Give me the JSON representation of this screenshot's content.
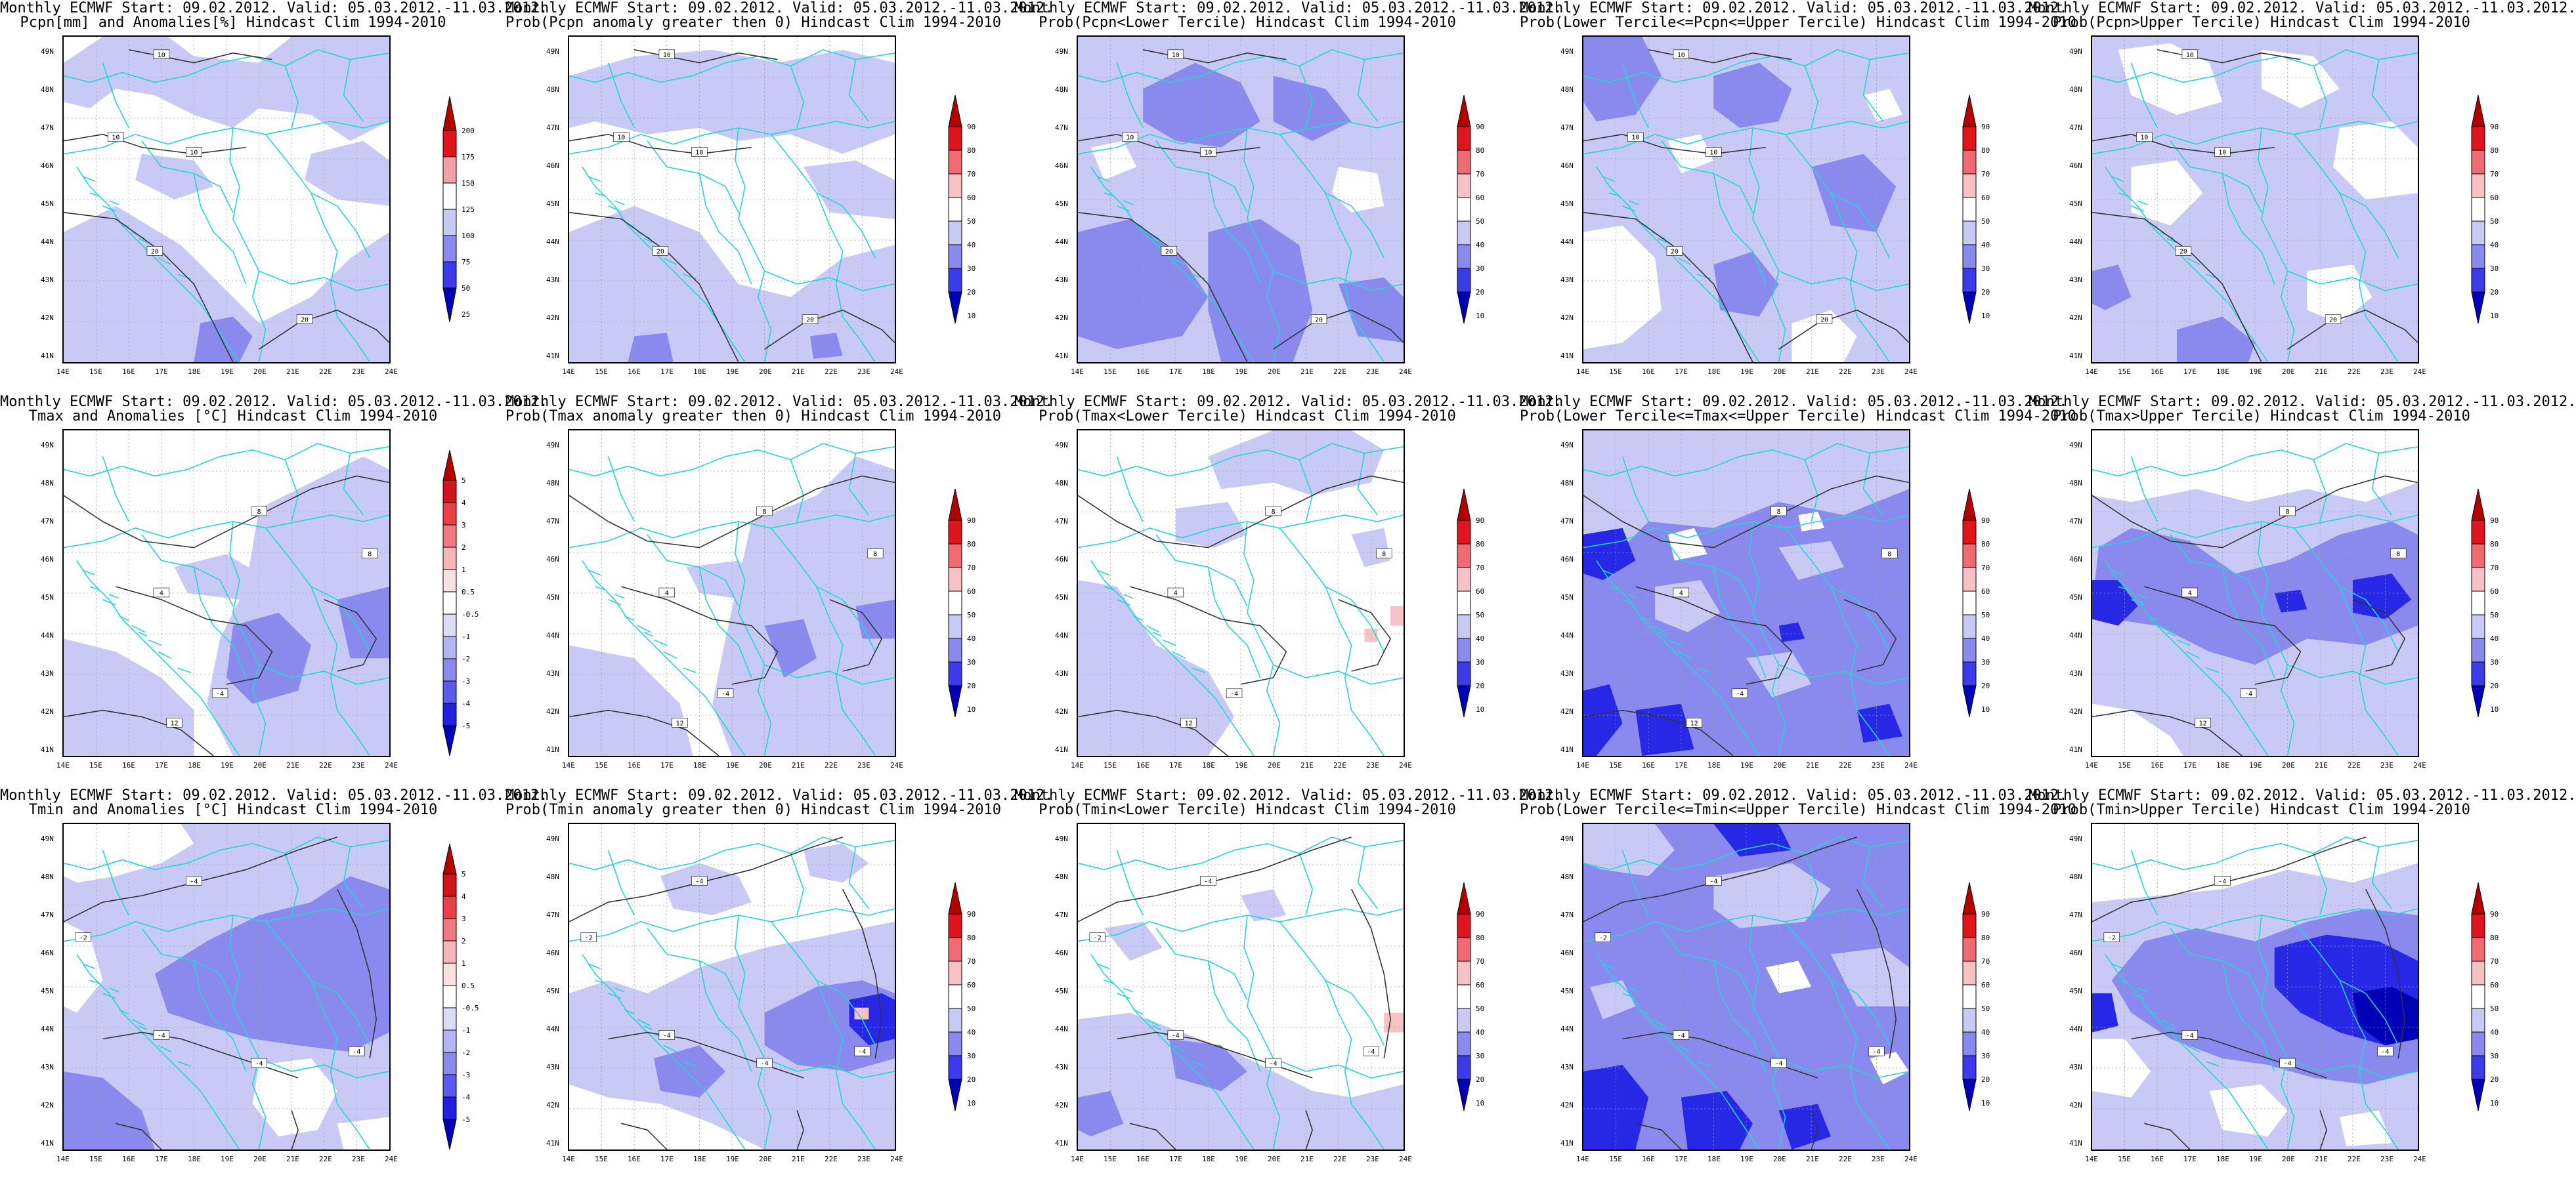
{
  "figure": {
    "panels": [
      {
        "title1": "Monthly ECMWF Start: 09.02.2012. Valid: 05.03.2012.-11.03.2012.",
        "title2": "Pcpn[mm] and Anomalies[%] Hindcast Clim 1994-2010",
        "scale": "pcpn"
      },
      {
        "title1": "Monthly ECMWF Start: 09.02.2012. Valid: 05.03.2012.-11.03.2012.",
        "title2": "Prob(Pcpn anomaly greater then 0) Hindcast Clim 1994-2010",
        "scale": "prob"
      },
      {
        "title1": "Monthly ECMWF Start: 09.02.2012. Valid: 05.03.2012.-11.03.2012.",
        "title2": "Prob(Pcpn<Lower Tercile) Hindcast Clim 1994-2010",
        "scale": "prob"
      },
      {
        "title1": "Monthly ECMWF Start: 09.02.2012. Valid: 05.03.2012.-11.03.2012.",
        "title2": "Prob(Lower Tercile<=Pcpn<=Upper Tercile) Hindcast Clim 1994-2010",
        "scale": "prob"
      },
      {
        "title1": "Monthly ECMWF Start: 09.02.2012. Valid: 05.03.2012.-11.03.2012.",
        "title2": "Prob(Pcpn>Upper Tercile) Hindcast Clim 1994-2010",
        "scale": "prob"
      },
      {
        "title1": "Monthly ECMWF Start: 09.02.2012. Valid: 05.03.2012.-11.03.2012.",
        "title2": "Tmax and Anomalies [°C] Hindcast Clim 1994-2010",
        "scale": "temp"
      },
      {
        "title1": "Monthly ECMWF Start: 09.02.2012. Valid: 05.03.2012.-11.03.2012.",
        "title2": "Prob(Tmax anomaly greater then 0) Hindcast Clim 1994-2010",
        "scale": "prob"
      },
      {
        "title1": "Monthly ECMWF Start: 09.02.2012. Valid: 05.03.2012.-11.03.2012.",
        "title2": "Prob(Tmax<Lower Tercile) Hindcast Clim 1994-2010",
        "scale": "prob"
      },
      {
        "title1": "Monthly ECMWF Start: 09.02.2012. Valid: 05.03.2012.-11.03.2012.",
        "title2": "Prob(Lower Tercile<=Tmax<=Upper Tercile) Hindcast Clim 1994-2010",
        "scale": "prob"
      },
      {
        "title1": "Monthly ECMWF Start: 09.02.2012. Valid: 05.03.2012.-11.03.2012.",
        "title2": "Prob(Tmax>Upper Tercile) Hindcast Clim 1994-2010",
        "scale": "prob"
      },
      {
        "title1": "Monthly ECMWF Start: 09.02.2012. Valid: 05.03.2012.-11.03.2012.",
        "title2": "Tmin and Anomalies [°C] Hindcast Clim 1994-2010",
        "scale": "temp"
      },
      {
        "title1": "Monthly ECMWF Start: 09.02.2012. Valid: 05.03.2012.-11.03.2012.",
        "title2": "Prob(Tmin anomaly greater then 0) Hindcast Clim 1994-2010",
        "scale": "prob"
      },
      {
        "title1": "Monthly ECMWF Start: 09.02.2012. Valid: 05.03.2012.-11.03.2012.",
        "title2": "Prob(Tmin<Lower Tercile) Hindcast Clim 1994-2010",
        "scale": "prob"
      },
      {
        "title1": "Monthly ECMWF Start: 09.02.2012. Valid: 05.03.2012.-11.03.2012.",
        "title2": "Prob(Lower Tercile<=Tmin<=Upper Tercile) Hindcast Clim 1994-2010",
        "scale": "prob"
      },
      {
        "title1": "Monthly ECMWF Start: 09.02.2012. Valid: 05.03.2012.-11.03.2012.",
        "title2": "Prob(Tmin>Upper Tercile) Hindcast Clim 1994-2010",
        "scale": "prob"
      }
    ],
    "lon_ticks": [
      "14E",
      "15E",
      "16E",
      "17E",
      "18E",
      "19E",
      "20E",
      "21E",
      "22E",
      "23E",
      "24E"
    ],
    "lat_ticks": [
      "49N",
      "48N",
      "47N",
      "46N",
      "45N",
      "44N",
      "43N",
      "42N",
      "41N"
    ],
    "colorbars": {
      "pcpn": {
        "labels": [
          "200",
          "175",
          "150",
          "125",
          "100",
          "75",
          "50",
          "25"
        ],
        "colors": [
          "#b50000",
          "#e0141c",
          "#f2a0a8",
          "#ffffff",
          "#c9c9f5",
          "#8a8aee",
          "#3b3bec",
          "#0000b8"
        ]
      },
      "prob": {
        "labels": [
          "90",
          "80",
          "70",
          "60",
          "50",
          "40",
          "30",
          "20",
          "10"
        ],
        "colors": [
          "#b50000",
          "#e0141c",
          "#f06a72",
          "#f7c2c6",
          "#ffffff",
          "#c9c9f5",
          "#8a8aee",
          "#3b3bec",
          "#0000b8"
        ]
      },
      "temp": {
        "labels": [
          "5",
          "4",
          "3",
          "2",
          "1",
          "0.5",
          "-0.5",
          "-1",
          "-2",
          "-3",
          "-4",
          "-5"
        ],
        "colors": [
          "#b50000",
          "#d2141c",
          "#e84048",
          "#f07a80",
          "#f7b6ba",
          "#fbe0e2",
          "#ffffff",
          "#dcdcf8",
          "#b4b4f2",
          "#8a8aee",
          "#5a5aec",
          "#2020e0",
          "#0000b8"
        ]
      }
    },
    "colors": {
      "lightBlue": "#c9c9f5",
      "midBlue": "#8a8aee",
      "strongBlue": "#5c5cec",
      "deepBlue": "#2727e6",
      "navy": "#0000b5",
      "pink": "#f7c2c6",
      "border": "#22d6d6",
      "contour": "#333333"
    },
    "contour_labels": {
      "pcpn": [
        "10",
        "10",
        "10",
        "20",
        "20"
      ],
      "temp": [
        "4",
        "8",
        "8",
        "-4",
        "12"
      ],
      "tmin": [
        "-4",
        "-2",
        "-4",
        "-4",
        "-4"
      ]
    }
  }
}
